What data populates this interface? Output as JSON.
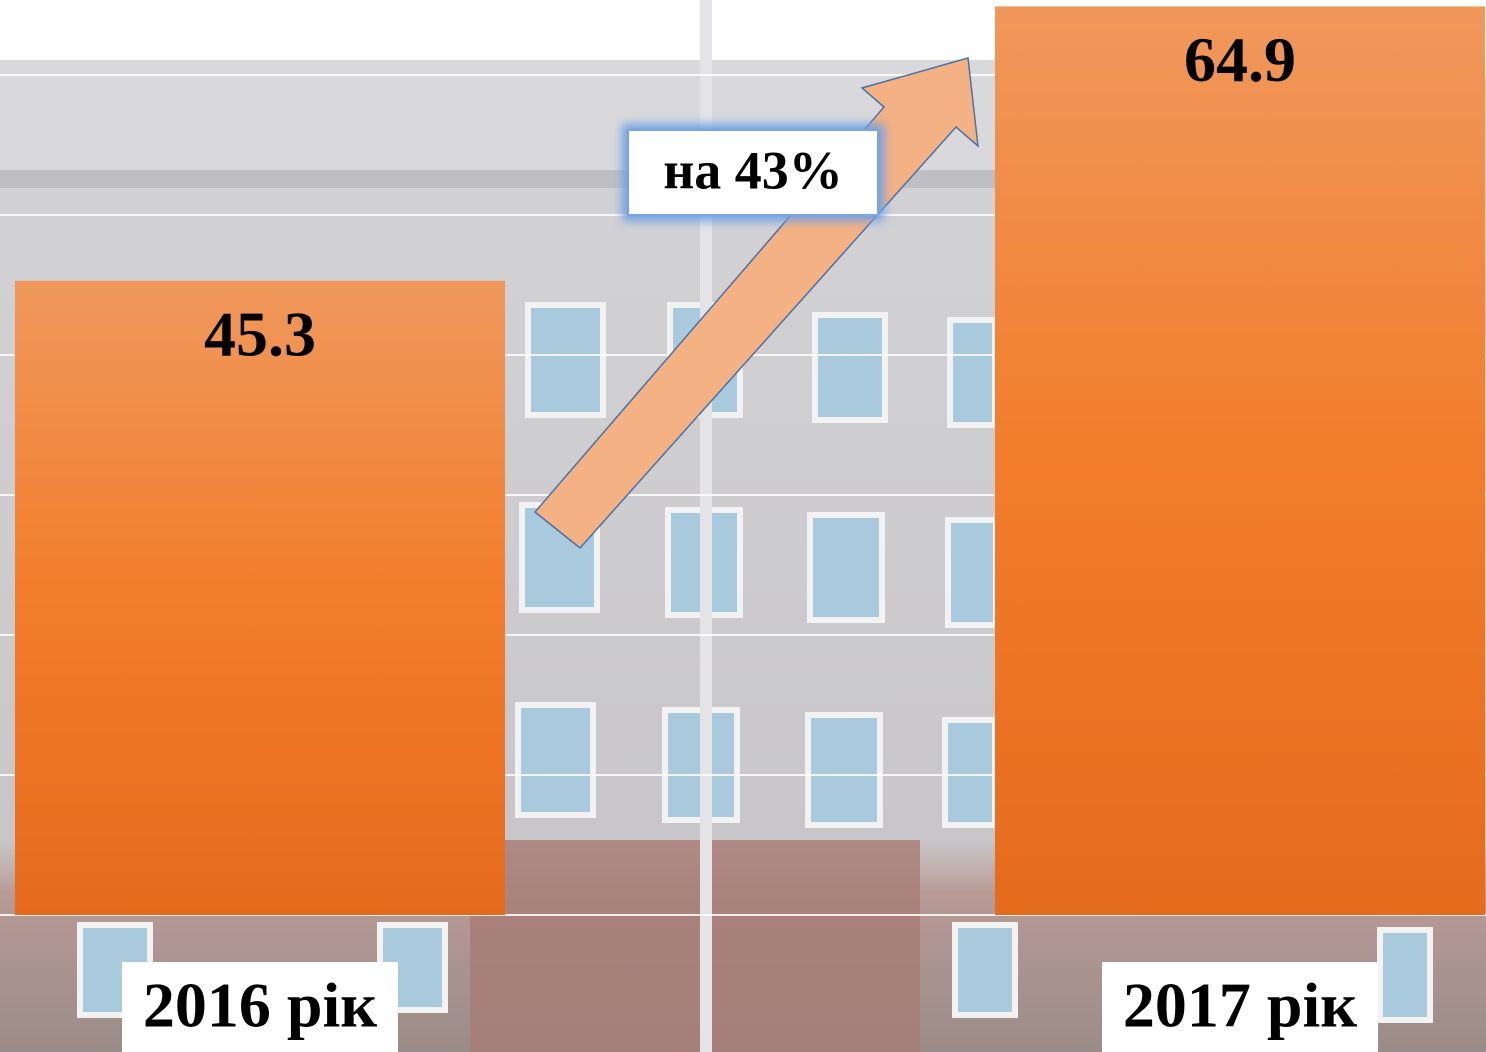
{
  "chart_data": {
    "type": "bar",
    "categories": [
      "2016 рік",
      "2017 рік"
    ],
    "values": [
      45.3,
      64.9
    ],
    "color": "#f07d2c",
    "ylim": [
      0,
      65
    ],
    "yticks": [
      0,
      10,
      20,
      30,
      40,
      50,
      60
    ],
    "grid": true,
    "annotation": "на 43%"
  }
}
